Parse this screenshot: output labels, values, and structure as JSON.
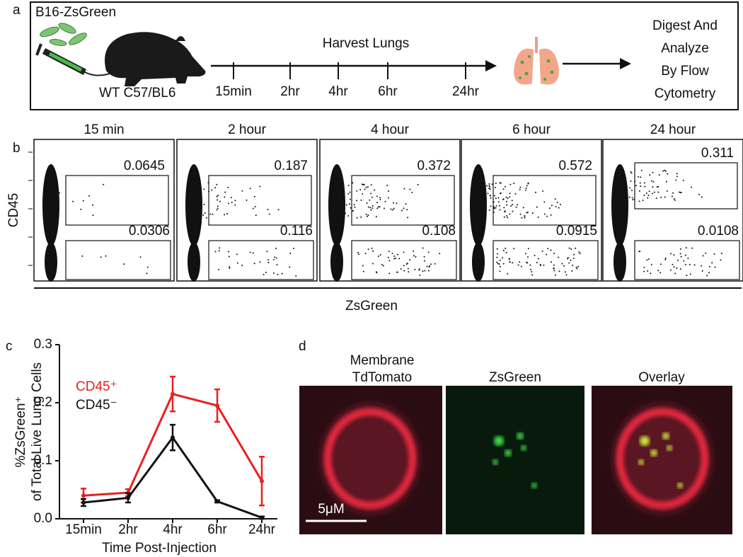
{
  "panel_a": {
    "label": "a",
    "cell_line": "B16-ZsGreen",
    "mouse": "WT C57/BL6",
    "timeline_title": "Harvest Lungs",
    "timepoints": [
      "15min",
      "2hr",
      "4hr",
      "6hr",
      "24hr"
    ],
    "final_step": [
      "Digest And",
      "Analyze",
      "By Flow",
      "Cytometry"
    ]
  },
  "panel_b": {
    "label": "b",
    "y_label": "CD45",
    "x_label": "ZsGreen",
    "plots": [
      {
        "title": "15 min",
        "upper_gate": "0.0645",
        "lower_gate": "0.0306"
      },
      {
        "title": "2 hour",
        "upper_gate": "0.187",
        "lower_gate": "0.116"
      },
      {
        "title": "4 hour",
        "upper_gate": "0.372",
        "lower_gate": "0.108"
      },
      {
        "title": "6 hour",
        "upper_gate": "0.572",
        "lower_gate": "0.0915"
      },
      {
        "title": "24 hour",
        "upper_gate": "0.311",
        "lower_gate": "0.0108"
      }
    ]
  },
  "chart_data": {
    "type": "line",
    "panel_label": "c",
    "y_label": [
      "%ZsGreen⁺",
      "of Total Live Lung Cells"
    ],
    "x_label": "Time Post-Injection",
    "categories": [
      "15min",
      "2hr",
      "4hr",
      "6hr",
      "24hr"
    ],
    "series": [
      {
        "name": "CD45⁺",
        "color": "#e8211f",
        "values": [
          0.04,
          0.045,
          0.215,
          0.195,
          0.065
        ],
        "errors": [
          0.012,
          0.006,
          0.03,
          0.028,
          0.042
        ]
      },
      {
        "name": "CD45⁻",
        "color": "#111111",
        "values": [
          0.028,
          0.036,
          0.14,
          0.03,
          0.002
        ],
        "errors": [
          0.006,
          0.008,
          0.022,
          0.002,
          0.002
        ]
      }
    ],
    "ylim": [
      0,
      0.3
    ],
    "yticks": [
      {
        "value": 0,
        "label": "0.0"
      },
      0.1,
      0.2,
      0.3
    ]
  },
  "panel_d": {
    "label": "d",
    "images": [
      {
        "title": [
          "Membrane",
          "TdTomato"
        ]
      },
      {
        "title": [
          "ZsGreen"
        ]
      },
      {
        "title": [
          "Overlay"
        ]
      }
    ],
    "scale_bar": "5μM"
  }
}
